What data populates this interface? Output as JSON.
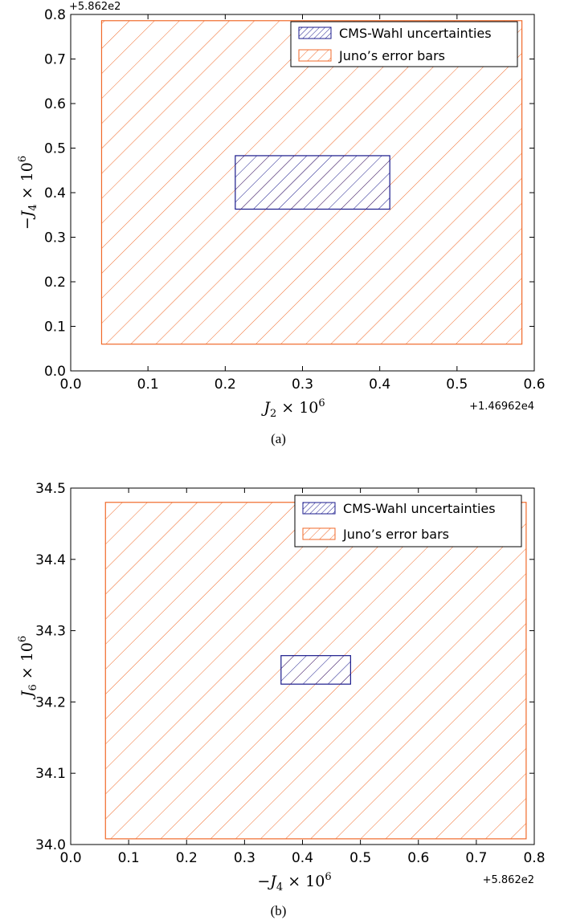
{
  "chart_data": [
    {
      "type": "area",
      "panel": "a",
      "caption": "(a)",
      "x_offset_label": "+1.46962e4",
      "y_offset_label": "+5.862e2",
      "xlabel": {
        "main": "J",
        "sub": "2",
        "rest": " × 10",
        "sup": "6"
      },
      "ylabel": {
        "main": "−J",
        "sub": "4",
        "rest": " × 10",
        "sup": "6"
      },
      "xlim": [
        0.0,
        0.6
      ],
      "ylim": [
        0.0,
        0.8
      ],
      "xticks": [
        "0.0",
        "0.1",
        "0.2",
        "0.3",
        "0.4",
        "0.5",
        "0.6"
      ],
      "yticks": [
        "0.0",
        "0.1",
        "0.2",
        "0.3",
        "0.4",
        "0.5",
        "0.6",
        "0.7",
        "0.8"
      ],
      "xtick_values": [
        0.0,
        0.1,
        0.2,
        0.3,
        0.4,
        0.5,
        0.6
      ],
      "ytick_values": [
        0.0,
        0.1,
        0.2,
        0.3,
        0.4,
        0.5,
        0.6,
        0.7,
        0.8
      ],
      "legend_position": "top-right",
      "series": [
        {
          "name": "CMS-Wahl uncertainties",
          "color": "#1a1a8c",
          "hatch": "//",
          "x": [
            0.213,
            0.413
          ],
          "y": [
            0.363,
            0.483
          ]
        },
        {
          "name": "Juno’s error bars",
          "color": "#f06a2a",
          "hatch": "/",
          "x": [
            0.04,
            0.584
          ],
          "y": [
            0.06,
            0.786
          ]
        }
      ]
    },
    {
      "type": "area",
      "panel": "b",
      "caption": "(b)",
      "x_offset_label": "+5.862e2",
      "y_offset_label": "",
      "xlabel": {
        "main": "−J",
        "sub": "4",
        "rest": " × 10",
        "sup": "6"
      },
      "ylabel": {
        "main": "J",
        "sub": "6",
        "rest": " × 10",
        "sup": "6"
      },
      "xlim": [
        0.0,
        0.8
      ],
      "ylim": [
        34.0,
        34.5
      ],
      "xticks": [
        "0.0",
        "0.1",
        "0.2",
        "0.3",
        "0.4",
        "0.5",
        "0.6",
        "0.7",
        "0.8"
      ],
      "yticks": [
        "34.0",
        "34.1",
        "34.2",
        "34.3",
        "34.4",
        "34.5"
      ],
      "xtick_values": [
        0.0,
        0.1,
        0.2,
        0.3,
        0.4,
        0.5,
        0.6,
        0.7,
        0.8
      ],
      "ytick_values": [
        34.0,
        34.1,
        34.2,
        34.3,
        34.4,
        34.5
      ],
      "legend_position": "top-right",
      "series": [
        {
          "name": "CMS-Wahl uncertainties",
          "color": "#1a1a8c",
          "hatch": "//",
          "x": [
            0.363,
            0.483
          ],
          "y": [
            34.225,
            34.265
          ]
        },
        {
          "name": "Juno’s error bars",
          "color": "#f06a2a",
          "hatch": "/",
          "x": [
            0.06,
            0.786
          ],
          "y": [
            34.008,
            34.48
          ]
        }
      ]
    }
  ]
}
